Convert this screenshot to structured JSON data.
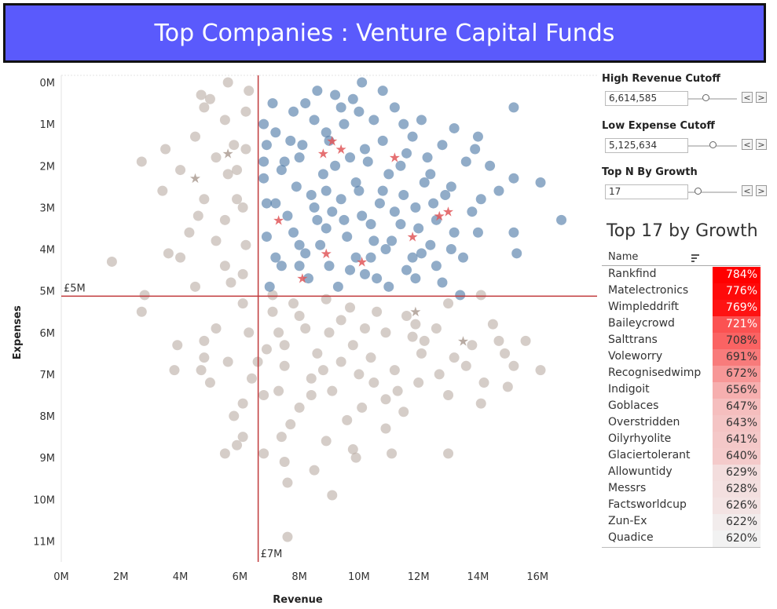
{
  "header": {
    "title": "Top Companies : Venture Capital Funds"
  },
  "controls": [
    {
      "label": "High Revenue Cutoff",
      "value": "6,614,585",
      "slider_fraction": 0.35
    },
    {
      "label": "Low Expense Cutoff",
      "value": "5,125,634",
      "slider_fraction": 0.5
    },
    {
      "label": "Top N By Growth",
      "value": "17",
      "slider_fraction": 0.2
    }
  ],
  "buttons": {
    "prev": "<",
    "next": ">"
  },
  "table": {
    "title": "Top 17 by Growth",
    "column": "Name",
    "rows": [
      {
        "name": "Rankfind",
        "growth": "784%",
        "value": 784
      },
      {
        "name": "Matelectronics",
        "growth": "776%",
        "value": 776
      },
      {
        "name": "Wimpleddrift",
        "growth": "769%",
        "value": 769
      },
      {
        "name": "Baileycrowd",
        "growth": "721%",
        "value": 721
      },
      {
        "name": "Salttrans",
        "growth": "708%",
        "value": 708
      },
      {
        "name": "Voleworry",
        "growth": "691%",
        "value": 691
      },
      {
        "name": "Recognisedwimp",
        "growth": "672%",
        "value": 672
      },
      {
        "name": "Indigoit",
        "growth": "656%",
        "value": 656
      },
      {
        "name": "Goblaces",
        "growth": "647%",
        "value": 647
      },
      {
        "name": "Overstridden",
        "growth": "643%",
        "value": 643
      },
      {
        "name": "Oilyrhyolite",
        "growth": "641%",
        "value": 641
      },
      {
        "name": "Glaciertolerant",
        "growth": "640%",
        "value": 640
      },
      {
        "name": "Allowuntidy",
        "growth": "629%",
        "value": 629
      },
      {
        "name": "Messrs",
        "growth": "628%",
        "value": 628
      },
      {
        "name": "Factsworldcup",
        "growth": "626%",
        "value": 626
      },
      {
        "name": "Zun-Ex",
        "growth": "622%",
        "value": 622
      },
      {
        "name": "Quadice",
        "growth": "620%",
        "value": 620
      }
    ]
  },
  "colors": {
    "title_bg": "#5a5afc",
    "top_fill": "#4e79a7",
    "other_fill": "#b9aca4",
    "star": "#e15759",
    "reference_line": "#c0393b",
    "heat_high": "#ff0000",
    "heat_low": "#f2f2f2"
  },
  "chart_data": {
    "type": "scatter",
    "xlabel": "Revenue",
    "ylabel": "Expenses",
    "xlim": [
      0,
      18000000
    ],
    "ylim": [
      0,
      11500000
    ],
    "y_reversed": true,
    "x_ticks": [
      "0M",
      "2M",
      "4M",
      "6M",
      "8M",
      "10M",
      "12M",
      "14M",
      "16M"
    ],
    "y_ticks": [
      "0M",
      "1M",
      "2M",
      "3M",
      "4M",
      "5M",
      "6M",
      "7M",
      "8M",
      "9M",
      "10M",
      "11M"
    ],
    "reference_lines": {
      "revenue": {
        "value": 6614585,
        "label": "£7M"
      },
      "expense": {
        "value": 5125634,
        "label": "£5M"
      }
    },
    "series": [
      {
        "group": "top_quadrant",
        "color": "#4e79a7",
        "points": [
          [
            10.1,
            0
          ],
          [
            8.6,
            0.2
          ],
          [
            10.8,
            0.2
          ],
          [
            9.2,
            0.3
          ],
          [
            7.1,
            0.5
          ],
          [
            15.2,
            0.6
          ],
          [
            9.8,
            0.4
          ],
          [
            7.8,
            0.7
          ],
          [
            8.2,
            0.5
          ],
          [
            11.2,
            0.6
          ],
          [
            12.1,
            0.9
          ],
          [
            13.2,
            1.1
          ],
          [
            9.5,
            1.0
          ],
          [
            10.5,
            0.9
          ],
          [
            7.2,
            1.2
          ],
          [
            11.8,
            1.3
          ],
          [
            8.9,
            1.2
          ],
          [
            14.0,
            1.3
          ],
          [
            6.9,
            1.5
          ],
          [
            12.8,
            1.5
          ],
          [
            10.2,
            1.6
          ],
          [
            8.1,
            1.5
          ],
          [
            13.9,
            1.6
          ],
          [
            7.5,
            1.9
          ],
          [
            9.7,
            1.8
          ],
          [
            11.4,
            2.0
          ],
          [
            12.4,
            2.2
          ],
          [
            14.4,
            2.0
          ],
          [
            6.8,
            2.3
          ],
          [
            15.2,
            2.3
          ],
          [
            16.1,
            2.4
          ],
          [
            13.1,
            2.5
          ],
          [
            10.8,
            2.6
          ],
          [
            8.4,
            2.7
          ],
          [
            7.2,
            2.9
          ],
          [
            14.1,
            2.8
          ],
          [
            11.9,
            3.0
          ],
          [
            9.1,
            3.1
          ],
          [
            12.6,
            3.3
          ],
          [
            16.8,
            3.3
          ],
          [
            10.4,
            3.4
          ],
          [
            7.8,
            3.6
          ],
          [
            13.2,
            3.6
          ],
          [
            15.2,
            3.6
          ],
          [
            11.1,
            3.8
          ],
          [
            8.7,
            3.9
          ],
          [
            15.3,
            4.1
          ],
          [
            12.1,
            4.1
          ],
          [
            9.9,
            4.2
          ],
          [
            7.4,
            4.4
          ],
          [
            11.6,
            4.5
          ],
          [
            10.6,
            4.7
          ],
          [
            8.3,
            4.7
          ],
          [
            12.8,
            4.8
          ],
          [
            9.3,
            4.9
          ],
          [
            7.0,
            4.9
          ],
          [
            11.0,
            4.9
          ],
          [
            13.4,
            5.1
          ],
          [
            10.2,
            4.6
          ],
          [
            9.0,
            4.4
          ],
          [
            8.2,
            4.1
          ],
          [
            10.9,
            4.0
          ],
          [
            12.4,
            3.9
          ],
          [
            9.6,
            3.7
          ],
          [
            8.9,
            3.5
          ],
          [
            11.4,
            3.4
          ],
          [
            10.1,
            3.2
          ],
          [
            7.6,
            3.2
          ],
          [
            12.0,
            3.5
          ],
          [
            8.5,
            3.0
          ],
          [
            10.7,
            2.9
          ],
          [
            9.4,
            2.8
          ],
          [
            11.5,
            2.7
          ],
          [
            7.9,
            2.5
          ],
          [
            12.9,
            2.7
          ],
          [
            9.9,
            2.4
          ],
          [
            8.8,
            2.2
          ],
          [
            11.0,
            2.2
          ],
          [
            7.4,
            2.1
          ],
          [
            12.2,
            2.4
          ],
          [
            9.2,
            2.0
          ],
          [
            10.3,
            1.9
          ],
          [
            8.0,
            1.8
          ],
          [
            11.6,
            1.7
          ],
          [
            10.8,
            1.4
          ],
          [
            9.0,
            1.4
          ],
          [
            12.3,
            1.8
          ],
          [
            7.7,
            1.4
          ],
          [
            8.5,
            0.9
          ],
          [
            10.0,
            0.7
          ],
          [
            11.5,
            1.0
          ],
          [
            9.4,
            0.6
          ],
          [
            13.6,
            1.9
          ],
          [
            14.7,
            2.6
          ],
          [
            13.8,
            3.1
          ],
          [
            13.5,
            4.2
          ],
          [
            12.6,
            4.4
          ],
          [
            11.9,
            4.7
          ],
          [
            7.2,
            4.2
          ],
          [
            6.9,
            3.7
          ],
          [
            6.9,
            2.9
          ],
          [
            6.8,
            1.9
          ],
          [
            6.8,
            1.0
          ],
          [
            10.5,
            3.8
          ],
          [
            9.7,
            4.5
          ],
          [
            8.6,
            3.3
          ],
          [
            11.2,
            3.1
          ],
          [
            10.0,
            2.6
          ],
          [
            8.9,
            2.6
          ],
          [
            9.5,
            3.3
          ],
          [
            10.4,
            4.2
          ],
          [
            11.8,
            4.2
          ],
          [
            8.0,
            3.9
          ],
          [
            8.0,
            4.4
          ],
          [
            12.5,
            2.9
          ],
          [
            13.1,
            4.0
          ],
          [
            14.0,
            3.6
          ]
        ]
      },
      {
        "group": "other",
        "color": "#b9aca4",
        "points": [
          [
            5.6,
            0.0
          ],
          [
            6.3,
            0.2
          ],
          [
            4.7,
            0.3
          ],
          [
            5.0,
            0.4
          ],
          [
            4.8,
            0.6
          ],
          [
            6.2,
            0.7
          ],
          [
            5.5,
            0.9
          ],
          [
            4.5,
            1.3
          ],
          [
            5.8,
            1.5
          ],
          [
            3.5,
            1.6
          ],
          [
            5.2,
            1.8
          ],
          [
            6.2,
            1.6
          ],
          [
            2.7,
            1.9
          ],
          [
            5.9,
            2.1
          ],
          [
            4.0,
            2.1
          ],
          [
            5.6,
            2.2
          ],
          [
            3.4,
            2.6
          ],
          [
            4.8,
            2.8
          ],
          [
            5.9,
            2.8
          ],
          [
            4.6,
            3.2
          ],
          [
            5.5,
            3.3
          ],
          [
            6.1,
            3.0
          ],
          [
            4.3,
            3.6
          ],
          [
            5.2,
            3.8
          ],
          [
            6.2,
            3.9
          ],
          [
            1.7,
            4.3
          ],
          [
            3.6,
            4.1
          ],
          [
            4.0,
            4.2
          ],
          [
            5.5,
            4.4
          ],
          [
            6.1,
            4.6
          ],
          [
            4.5,
            4.9
          ],
          [
            5.7,
            4.8
          ],
          [
            2.8,
            5.1
          ],
          [
            2.7,
            5.5
          ],
          [
            6.1,
            5.3
          ],
          [
            7.1,
            5.5
          ],
          [
            7.8,
            5.3
          ],
          [
            8.9,
            5.2
          ],
          [
            9.7,
            5.4
          ],
          [
            10.6,
            5.5
          ],
          [
            11.6,
            5.6
          ],
          [
            13.0,
            5.3
          ],
          [
            14.1,
            5.1
          ],
          [
            14.5,
            5.8
          ],
          [
            11.9,
            5.8
          ],
          [
            10.2,
            5.9
          ],
          [
            9.0,
            6.0
          ],
          [
            8.2,
            5.9
          ],
          [
            7.3,
            6.0
          ],
          [
            6.3,
            6.0
          ],
          [
            5.2,
            5.9
          ],
          [
            4.8,
            6.2
          ],
          [
            3.9,
            6.3
          ],
          [
            12.2,
            6.2
          ],
          [
            14.7,
            6.2
          ],
          [
            15.6,
            6.2
          ],
          [
            13.8,
            6.3
          ],
          [
            6.9,
            6.4
          ],
          [
            8.6,
            6.5
          ],
          [
            10.4,
            6.6
          ],
          [
            12.1,
            6.5
          ],
          [
            13.2,
            6.6
          ],
          [
            14.9,
            6.5
          ],
          [
            4.8,
            6.6
          ],
          [
            5.6,
            6.7
          ],
          [
            7.5,
            6.8
          ],
          [
            9.4,
            6.7
          ],
          [
            11.2,
            6.9
          ],
          [
            13.6,
            6.8
          ],
          [
            15.2,
            6.8
          ],
          [
            16.1,
            6.9
          ],
          [
            3.8,
            6.9
          ],
          [
            4.7,
            6.9
          ],
          [
            6.4,
            7.1
          ],
          [
            8.4,
            7.1
          ],
          [
            10.5,
            7.2
          ],
          [
            12.0,
            7.2
          ],
          [
            14.2,
            7.2
          ],
          [
            15.0,
            7.3
          ],
          [
            5.0,
            7.2
          ],
          [
            7.3,
            7.4
          ],
          [
            9.1,
            7.4
          ],
          [
            11.3,
            7.4
          ],
          [
            13.0,
            7.5
          ],
          [
            6.1,
            7.7
          ],
          [
            8.0,
            7.8
          ],
          [
            10.1,
            7.8
          ],
          [
            11.5,
            7.9
          ],
          [
            14.1,
            7.7
          ],
          [
            5.8,
            8.0
          ],
          [
            7.7,
            8.2
          ],
          [
            9.6,
            8.1
          ],
          [
            10.9,
            8.3
          ],
          [
            6.1,
            8.5
          ],
          [
            7.4,
            8.5
          ],
          [
            8.9,
            8.6
          ],
          [
            5.9,
            8.7
          ],
          [
            5.5,
            8.9
          ],
          [
            6.8,
            8.9
          ],
          [
            9.8,
            8.8
          ],
          [
            11.1,
            8.9
          ],
          [
            13.0,
            8.9
          ],
          [
            7.5,
            9.1
          ],
          [
            8.5,
            9.3
          ],
          [
            7.6,
            9.6
          ],
          [
            9.9,
            9.0
          ],
          [
            9.1,
            9.9
          ],
          [
            7.6,
            10.9
          ],
          [
            7.1,
            5.1
          ],
          [
            8.0,
            5.6
          ],
          [
            9.4,
            5.7
          ],
          [
            10.9,
            6.0
          ],
          [
            12.6,
            5.9
          ],
          [
            7.5,
            6.3
          ],
          [
            9.8,
            6.3
          ],
          [
            11.8,
            6.1
          ],
          [
            6.6,
            6.7
          ],
          [
            8.8,
            6.9
          ],
          [
            10.0,
            7.0
          ],
          [
            12.7,
            7.0
          ],
          [
            6.8,
            7.5
          ],
          [
            8.4,
            7.5
          ],
          [
            10.9,
            7.6
          ]
        ]
      }
    ],
    "stars": {
      "color": "#e15759",
      "points": [
        [
          9.1,
          1.4
        ],
        [
          9.4,
          1.6
        ],
        [
          8.8,
          1.7
        ],
        [
          11.2,
          1.8
        ],
        [
          7.3,
          3.3
        ],
        [
          13.0,
          3.1
        ],
        [
          12.7,
          3.2
        ],
        [
          11.8,
          3.7
        ],
        [
          8.9,
          4.1
        ],
        [
          10.1,
          4.3
        ],
        [
          8.1,
          4.7
        ]
      ]
    },
    "faded_stars": {
      "color": "#b9aca4",
      "points": [
        [
          4.5,
          2.3
        ],
        [
          5.6,
          1.7
        ],
        [
          13.5,
          6.2
        ],
        [
          11.9,
          5.5
        ]
      ]
    }
  }
}
